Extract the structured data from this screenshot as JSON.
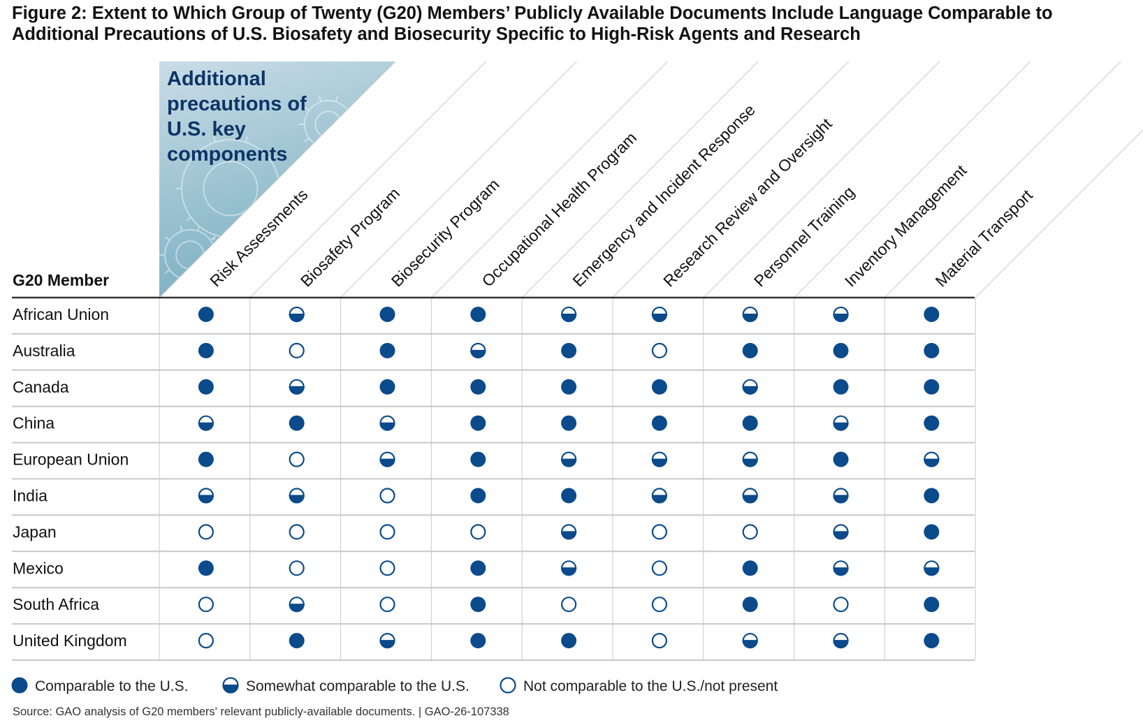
{
  "title": {
    "line1": "Figure 2: Extent to Which Group of Twenty (G20) Members’ Publicly Available Documents Include Language Comparable to",
    "line2": "Additional Precautions of U.S. Biosafety and Biosecurity Specific to High-Risk Agents and Research"
  },
  "colors": {
    "navy": "#0b4a8b",
    "header_text": "#0d3466",
    "triangle_top": "#c9dde6",
    "triangle_bottom": "#7aafc2",
    "grid": "#c8c8c8",
    "header_rule": "#333333"
  },
  "chart_data": {
    "type": "table",
    "corner_label": [
      "Additional",
      "precautions of",
      "U.S. key",
      "components"
    ],
    "row_header": "G20 Member",
    "columns": [
      "Risk Assessments",
      "Biosafety Program",
      "Biosecurity Program",
      "Occupational Health Program",
      "Emergency and Incident Response",
      "Research Review and Oversight",
      "Personnel Training",
      "Inventory Management",
      "Material Transport"
    ],
    "rows": [
      {
        "member": "African Union",
        "values": [
          "full",
          "half",
          "full",
          "full",
          "half",
          "half",
          "half",
          "half",
          "full"
        ]
      },
      {
        "member": "Australia",
        "values": [
          "full",
          "none",
          "full",
          "half",
          "full",
          "none",
          "full",
          "full",
          "full"
        ]
      },
      {
        "member": "Canada",
        "values": [
          "full",
          "half",
          "full",
          "full",
          "full",
          "full",
          "half",
          "full",
          "full"
        ]
      },
      {
        "member": "China",
        "values": [
          "half",
          "full",
          "half",
          "full",
          "full",
          "full",
          "full",
          "half",
          "full"
        ]
      },
      {
        "member": "European Union",
        "values": [
          "full",
          "none",
          "half",
          "full",
          "half",
          "half",
          "half",
          "full",
          "half"
        ]
      },
      {
        "member": "India",
        "values": [
          "half",
          "half",
          "none",
          "full",
          "full",
          "half",
          "half",
          "half",
          "full"
        ]
      },
      {
        "member": "Japan",
        "values": [
          "none",
          "none",
          "none",
          "none",
          "half",
          "none",
          "none",
          "half",
          "full"
        ]
      },
      {
        "member": "Mexico",
        "values": [
          "full",
          "none",
          "none",
          "full",
          "half",
          "none",
          "full",
          "half",
          "half"
        ]
      },
      {
        "member": "South Africa",
        "values": [
          "none",
          "half",
          "none",
          "full",
          "none",
          "none",
          "full",
          "none",
          "full"
        ]
      },
      {
        "member": "United Kingdom",
        "values": [
          "none",
          "full",
          "half",
          "full",
          "full",
          "none",
          "half",
          "half",
          "full"
        ]
      }
    ],
    "legend": [
      {
        "key": "full",
        "label": "Comparable to the U.S."
      },
      {
        "key": "half",
        "label": "Somewhat comparable to the U.S."
      },
      {
        "key": "none",
        "label": "Not comparable to the U.S./not present"
      }
    ]
  },
  "source": "Source: GAO analysis of G20 members' relevant publicly-available documents.  |  GAO-26-107338"
}
